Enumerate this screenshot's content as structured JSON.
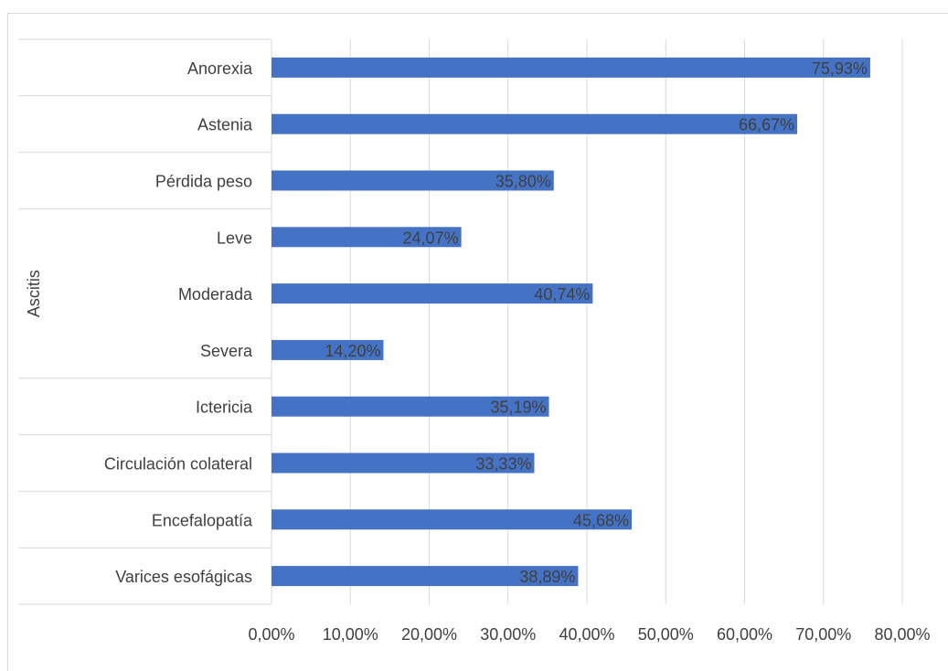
{
  "chart_data": {
    "type": "bar",
    "orientation": "horizontal",
    "title": "",
    "xlabel": "",
    "ylabel": "",
    "group_label": "Ascitis",
    "group_members": [
      "Leve",
      "Moderada",
      "Severa"
    ],
    "categories": [
      "Anorexia",
      "Astenia",
      "Pérdida peso",
      "Leve",
      "Moderada",
      "Severa",
      "Ictericia",
      "Circulación colateral",
      "Encefalopatía",
      "Varices esofágicas"
    ],
    "values": [
      75.93,
      66.67,
      35.8,
      24.07,
      40.74,
      14.2,
      35.19,
      33.33,
      45.68,
      38.89
    ],
    "data_labels": [
      "75,93%",
      "66,67%",
      "35,80%",
      "24,07%",
      "40,74%",
      "14,20%",
      "35,19%",
      "33,33%",
      "45,68%",
      "38,89%"
    ],
    "xlim": [
      0,
      80
    ],
    "xticks": [
      0,
      10,
      20,
      30,
      40,
      50,
      60,
      70,
      80
    ],
    "xtick_labels": [
      "0,00%",
      "10,00%",
      "20,00%",
      "30,00%",
      "40,00%",
      "50,00%",
      "60,00%",
      "70,00%",
      "80,00%"
    ],
    "grid": "vertical",
    "legend": "none",
    "colors": {
      "bar": "#4472c4",
      "grid": "#d9d9d9",
      "text": "#404040"
    }
  }
}
